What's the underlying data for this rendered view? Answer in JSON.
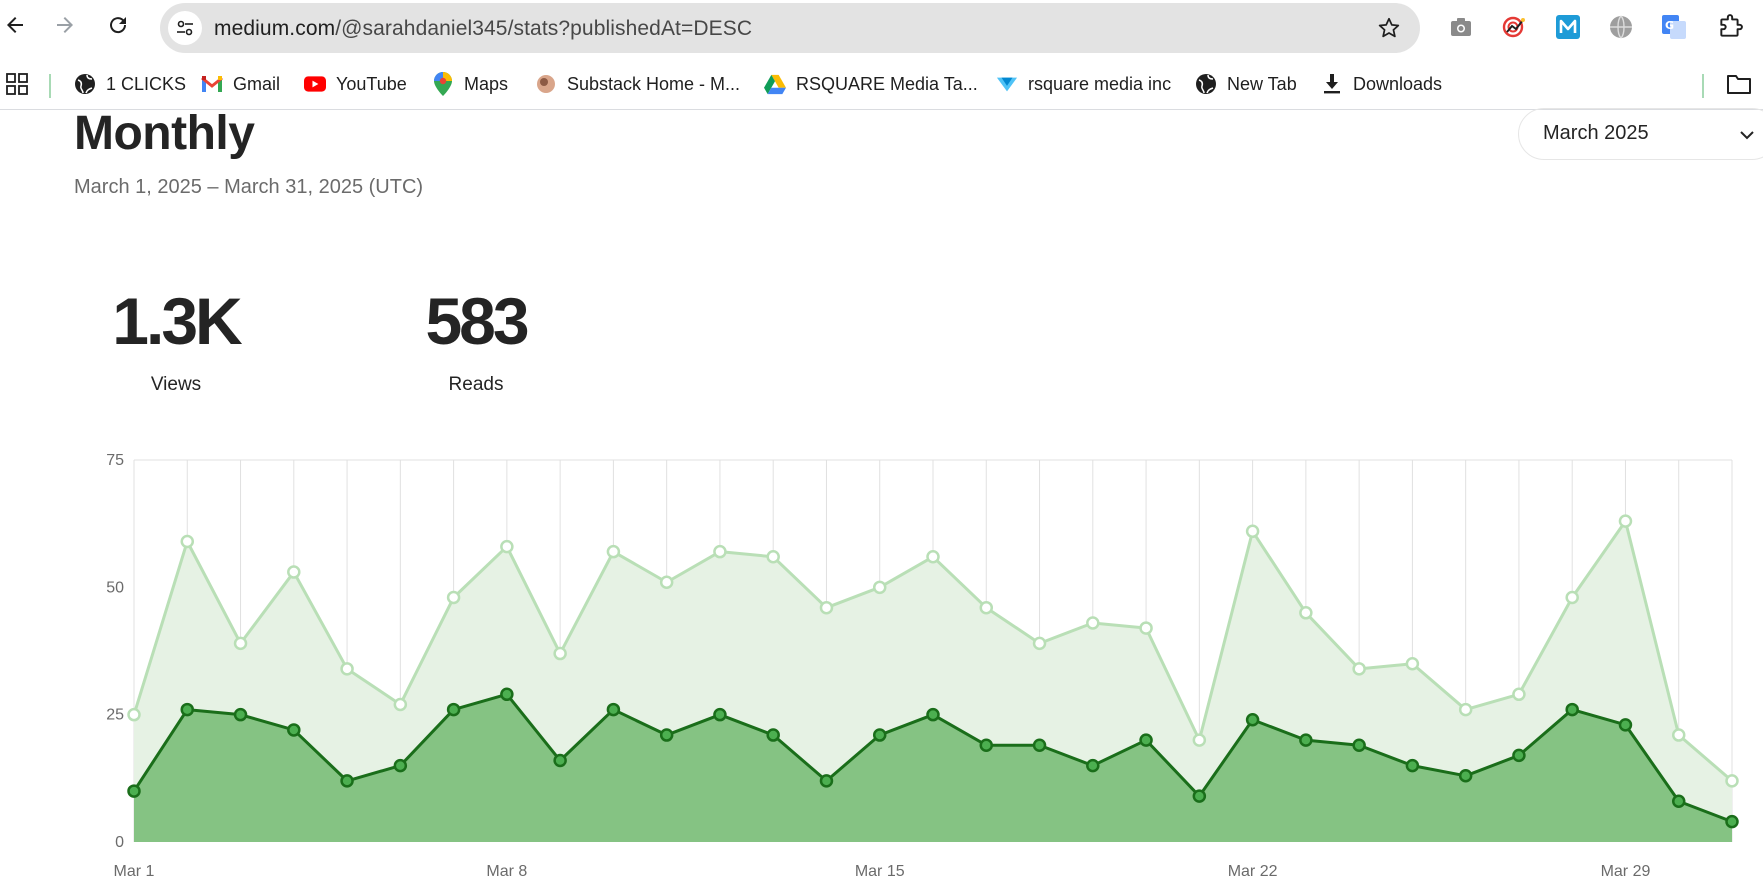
{
  "browser": {
    "url_domain": "medium.com",
    "url_path": "/@sarahdaniel345/stats?publishedAt=DESC"
  },
  "bookmarks": [
    {
      "label": "1 CLICKS",
      "icon": "globe-icon"
    },
    {
      "label": "Gmail",
      "icon": "gmail-icon"
    },
    {
      "label": "YouTube",
      "icon": "youtube-icon"
    },
    {
      "label": "Maps",
      "icon": "maps-pin-icon"
    },
    {
      "label": "Substack Home - M...",
      "icon": "substack-icon"
    },
    {
      "label": "RSQUARE Media Ta...",
      "icon": "drive-icon"
    },
    {
      "label": "rsquare media inc",
      "icon": "rsquare-icon"
    },
    {
      "label": "New Tab",
      "icon": "globe-icon"
    },
    {
      "label": "Downloads",
      "icon": "download-icon"
    }
  ],
  "page": {
    "title": "Monthly",
    "date_range": "March 1, 2025 – March 31, 2025 (UTC)",
    "month_select": "March 2025"
  },
  "stats": {
    "views": {
      "value": "1.3K",
      "label": "Views"
    },
    "reads": {
      "value": "583",
      "label": "Reads"
    }
  },
  "colors": {
    "views_line": "#b9dfb6",
    "views_fill": "#e6f2e4",
    "reads_line": "#1a6e1a",
    "reads_fill": "#85c383",
    "grid": "#e0e0e0"
  },
  "chart_data": {
    "type": "area",
    "x": [
      "Mar 1",
      "Mar 2",
      "Mar 3",
      "Mar 4",
      "Mar 5",
      "Mar 6",
      "Mar 7",
      "Mar 8",
      "Mar 9",
      "Mar 10",
      "Mar 11",
      "Mar 12",
      "Mar 13",
      "Mar 14",
      "Mar 15",
      "Mar 16",
      "Mar 17",
      "Mar 18",
      "Mar 19",
      "Mar 20",
      "Mar 21",
      "Mar 22",
      "Mar 23",
      "Mar 24",
      "Mar 25",
      "Mar 26",
      "Mar 27",
      "Mar 28",
      "Mar 29",
      "Mar 30",
      "Mar 31"
    ],
    "x_tick_labels": [
      "Mar 1",
      "Mar 8",
      "Mar 15",
      "Mar 22",
      "Mar 29"
    ],
    "y_ticks": [
      0,
      25,
      50,
      75
    ],
    "ylim": [
      0,
      75
    ],
    "grid": true,
    "series": [
      {
        "values": [
          25,
          59,
          39,
          53,
          34,
          27,
          48,
          58,
          37,
          57,
          51,
          57,
          56,
          46,
          50,
          56,
          46,
          39,
          43,
          42,
          20,
          61,
          45,
          34,
          35,
          26,
          29,
          48,
          63,
          21,
          12
        ]
      },
      {
        "values": [
          10,
          26,
          25,
          22,
          12,
          15,
          26,
          29,
          16,
          26,
          21,
          25,
          21,
          12,
          21,
          25,
          19,
          19,
          15,
          20,
          9,
          24,
          20,
          19,
          15,
          13,
          17,
          26,
          23,
          8,
          4
        ]
      }
    ]
  }
}
